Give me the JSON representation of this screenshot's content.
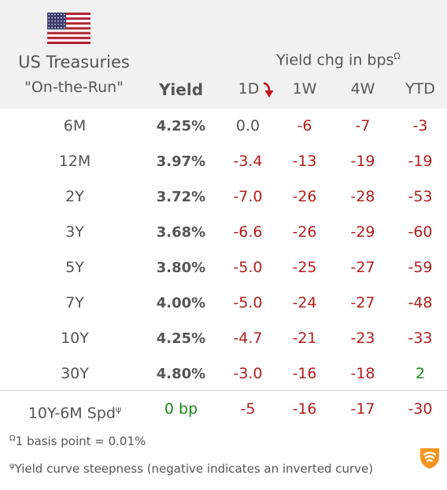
{
  "header": {
    "title_line1": "US Treasuries",
    "title_line2": "\"On-the-Run\"",
    "yield_label": "Yield",
    "chg_label": "Yield chg in bps",
    "chg_sup": "Ω",
    "cols": [
      "1D",
      "1W",
      "4W",
      "YTD"
    ]
  },
  "rows": [
    {
      "term": "6M",
      "yield": "4.25%",
      "d1": "0.0",
      "w1": "-6",
      "w4": "-7",
      "ytd": "-3"
    },
    {
      "term": "12M",
      "yield": "3.97%",
      "d1": "-3.4",
      "w1": "-13",
      "w4": "-19",
      "ytd": "-19"
    },
    {
      "term": "2Y",
      "yield": "3.72%",
      "d1": "-7.0",
      "w1": "-26",
      "w4": "-28",
      "ytd": "-53"
    },
    {
      "term": "3Y",
      "yield": "3.68%",
      "d1": "-6.6",
      "w1": "-26",
      "w4": "-29",
      "ytd": "-60"
    },
    {
      "term": "5Y",
      "yield": "3.80%",
      "d1": "-5.0",
      "w1": "-25",
      "w4": "-27",
      "ytd": "-59"
    },
    {
      "term": "7Y",
      "yield": "4.00%",
      "d1": "-5.0",
      "w1": "-24",
      "w4": "-27",
      "ytd": "-48"
    },
    {
      "term": "10Y",
      "yield": "4.25%",
      "d1": "-4.7",
      "w1": "-21",
      "w4": "-23",
      "ytd": "-33"
    },
    {
      "term": "30Y",
      "yield": "4.80%",
      "d1": "-3.0",
      "w1": "-16",
      "w4": "-18",
      "ytd": "2"
    }
  ],
  "spread": {
    "label": "10Y-6M Spd",
    "label_sup": "ψ",
    "yield": "0 bp",
    "d1": "-5",
    "w1": "-16",
    "w4": "-17",
    "ytd": "-30"
  },
  "footnotes": {
    "f1_sup": "Ω",
    "f1": "1 basis point = 0.01%",
    "f2_sup": "ψ",
    "f2": "Yield curve steepness (negative indicates an inverted curve)"
  },
  "colors": {
    "negative": "#b21f1f",
    "positive": "#1a8a1a",
    "header_bg": "#f1f1f1",
    "sort_arrow": "#c0161c",
    "logo": "#f7941d"
  },
  "icons": {
    "flag": "us-flag-icon",
    "sort": "sort-down-arrow-icon",
    "logo": "brand-logo-icon"
  }
}
